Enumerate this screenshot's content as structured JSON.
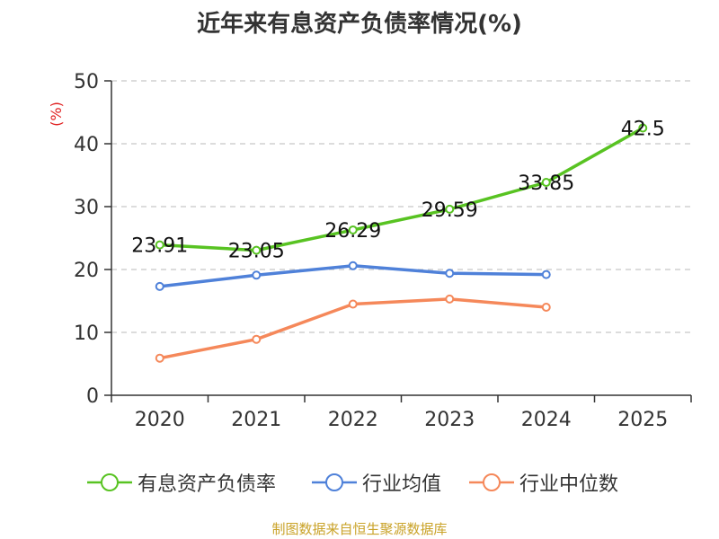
{
  "chart_data": {
    "type": "line",
    "title": "近年来有息资产负债率情况(%)",
    "ylabel": "(%)",
    "xlabel": "",
    "ylim": [
      0,
      50
    ],
    "yticks": [
      0,
      10,
      20,
      30,
      40,
      50
    ],
    "categories": [
      "2020",
      "2021",
      "2022",
      "2023",
      "2024",
      "2025"
    ],
    "grid": "horizontal dashed",
    "legend_position": "bottom",
    "series": [
      {
        "name": "有息资产负债率",
        "color": "#58c322",
        "values": [
          23.91,
          23.05,
          26.29,
          29.59,
          33.85,
          42.5
        ],
        "labels": [
          "23.91",
          "23.05",
          "26.29",
          "29.59",
          "33.85",
          "42.5"
        ]
      },
      {
        "name": "行业均值",
        "color": "#4f81d9",
        "values": [
          17.3,
          19.1,
          20.6,
          19.4,
          19.2,
          null
        ]
      },
      {
        "name": "行业中位数",
        "color": "#f5885a",
        "values": [
          5.9,
          8.9,
          14.5,
          15.3,
          14.0,
          null
        ]
      }
    ]
  },
  "source_note": "制图数据来自恒生聚源数据库"
}
